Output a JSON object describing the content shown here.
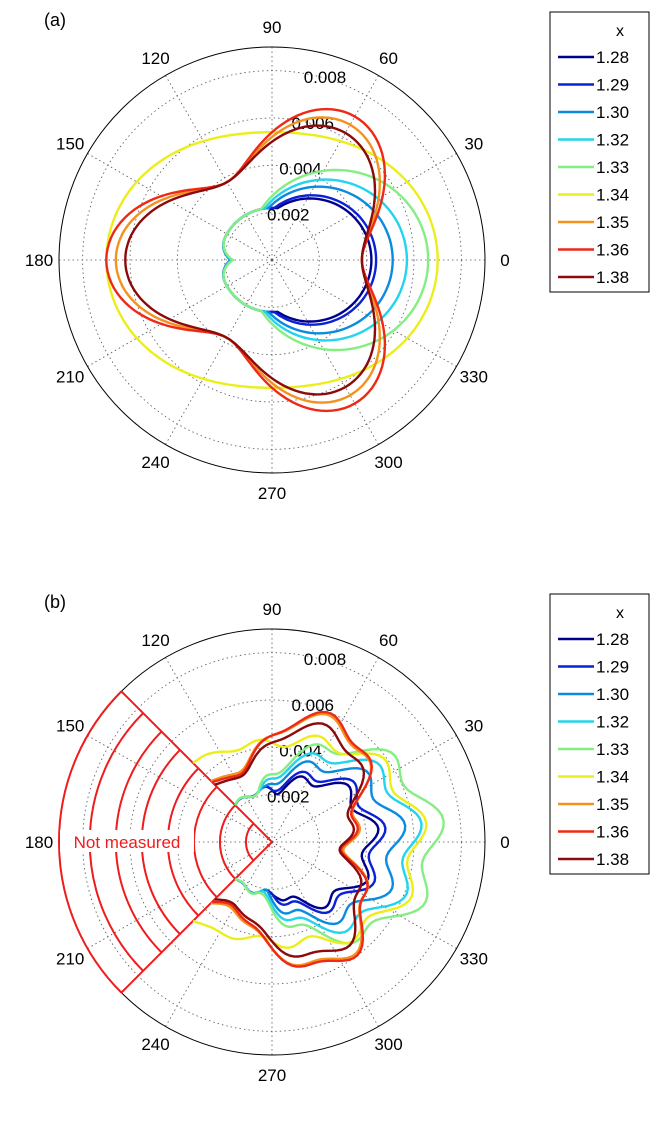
{
  "chart_data": [
    {
      "type": "polar-line",
      "panel_label": "(a)",
      "angle_ticks": [
        "0",
        "30",
        "60",
        "90",
        "120",
        "150",
        "180",
        "210",
        "240",
        "270",
        "300",
        "330"
      ],
      "radius_ticks": [
        "0.002",
        "0.004",
        "0.006",
        "0.008"
      ],
      "rmax": 0.009,
      "legend": {
        "title": "x",
        "placement": "right"
      },
      "series": [
        {
          "name": "1.28",
          "color": "#00008f",
          "shape": "lobe",
          "r0": 0.004,
          "a3": 0.0012,
          "a2": 0.0002,
          "dimple": 0.0009,
          "ripple": 0
        },
        {
          "name": "1.29",
          "color": "#0a21d6",
          "shape": "lobe",
          "r0": 0.0042,
          "a3": 0.0012,
          "a2": 0.0002,
          "dimple": 0.0009,
          "ripple": 0
        },
        {
          "name": "1.30",
          "color": "#0b8be0",
          "shape": "lobe",
          "r0": 0.0048,
          "a3": 0.0011,
          "a2": 0.0003,
          "dimple": 0.0009,
          "ripple": 0
        },
        {
          "name": "1.32",
          "color": "#22d4ee",
          "shape": "lobe",
          "r0": 0.0053,
          "a3": 0.001,
          "a2": 0.0004,
          "dimple": 0.001,
          "ripple": 0
        },
        {
          "name": "1.33",
          "color": "#84ee82",
          "shape": "lobe",
          "r0": 0.006,
          "a3": 0.0009,
          "a2": 0.0006,
          "dimple": 0.0011,
          "ripple": 0
        },
        {
          "name": "1.34",
          "color": "#ecee1a",
          "shape": "oval",
          "r0": 0.0062,
          "a3": 0.0,
          "a2": 0.0008,
          "dimple": 0,
          "ripple": 0
        },
        {
          "name": "1.35",
          "color": "#f5911e",
          "shape": "trefoil",
          "r0": 0.0052,
          "a3": 0.0014,
          "a2": 0,
          "dimple": 0,
          "ripple": 0
        },
        {
          "name": "1.36",
          "color": "#ee2a16",
          "shape": "trefoil",
          "r0": 0.0054,
          "a3": 0.0016,
          "a2": 0,
          "dimple": 0,
          "ripple": 0
        },
        {
          "name": "1.38",
          "color": "#8c0a0a",
          "shape": "trefoil",
          "r0": 0.005,
          "a3": 0.0012,
          "a2": 0,
          "dimple": 0,
          "ripple": 0
        }
      ]
    },
    {
      "type": "polar-line",
      "panel_label": "(b)",
      "angle_ticks": [
        "0",
        "30",
        "60",
        "90",
        "120",
        "150",
        "180",
        "210",
        "240",
        "270",
        "300",
        "330"
      ],
      "radius_ticks": [
        "0.002",
        "0.004",
        "0.006",
        "0.008"
      ],
      "rmax": 0.009,
      "legend": {
        "title": "x",
        "placement": "right"
      },
      "annotation": {
        "text": "Not measured",
        "theta_range": [
          135,
          225
        ],
        "color": "#ee1c1c"
      },
      "series": [
        {
          "name": "1.28",
          "color": "#00008f",
          "shape": "lobe",
          "r0": 0.004,
          "a3": 0.0012,
          "a2": 0.0002,
          "dimple": 0,
          "ripple": 0.00035
        },
        {
          "name": "1.29",
          "color": "#0a21d6",
          "shape": "lobe",
          "r0": 0.0043,
          "a3": 0.0012,
          "a2": 0.0002,
          "dimple": 0,
          "ripple": 0.00035
        },
        {
          "name": "1.30",
          "color": "#0b8be0",
          "shape": "lobe",
          "r0": 0.005,
          "a3": 0.0011,
          "a2": 0.0003,
          "dimple": 0,
          "ripple": 0.0004
        },
        {
          "name": "1.32",
          "color": "#22d4ee",
          "shape": "lobe",
          "r0": 0.0056,
          "a3": 0.001,
          "a2": 0.0004,
          "dimple": 0,
          "ripple": 0.0004
        },
        {
          "name": "1.33",
          "color": "#84ee82",
          "shape": "lobe",
          "r0": 0.0063,
          "a3": 0.0009,
          "a2": 0.0006,
          "dimple": 0,
          "ripple": 0.00045
        },
        {
          "name": "1.34",
          "color": "#ecee1a",
          "shape": "oval",
          "r0": 0.005,
          "a3": 0.0004,
          "a2": 0.0008,
          "dimple": 0,
          "ripple": 0.0004
        },
        {
          "name": "1.35",
          "color": "#f5911e",
          "shape": "trefoil",
          "r0": 0.0045,
          "a3": 0.0012,
          "a2": 0,
          "dimple": 0,
          "ripple": 0.00035
        },
        {
          "name": "1.36",
          "color": "#ee2a16",
          "shape": "trefoil",
          "r0": 0.0045,
          "a3": 0.0013,
          "a2": 0,
          "dimple": 0,
          "ripple": 0.00035
        },
        {
          "name": "1.38",
          "color": "#8c0a0a",
          "shape": "trefoil",
          "r0": 0.0042,
          "a3": 0.0011,
          "a2": 0,
          "dimple": 0,
          "ripple": 0.0003
        }
      ]
    }
  ]
}
